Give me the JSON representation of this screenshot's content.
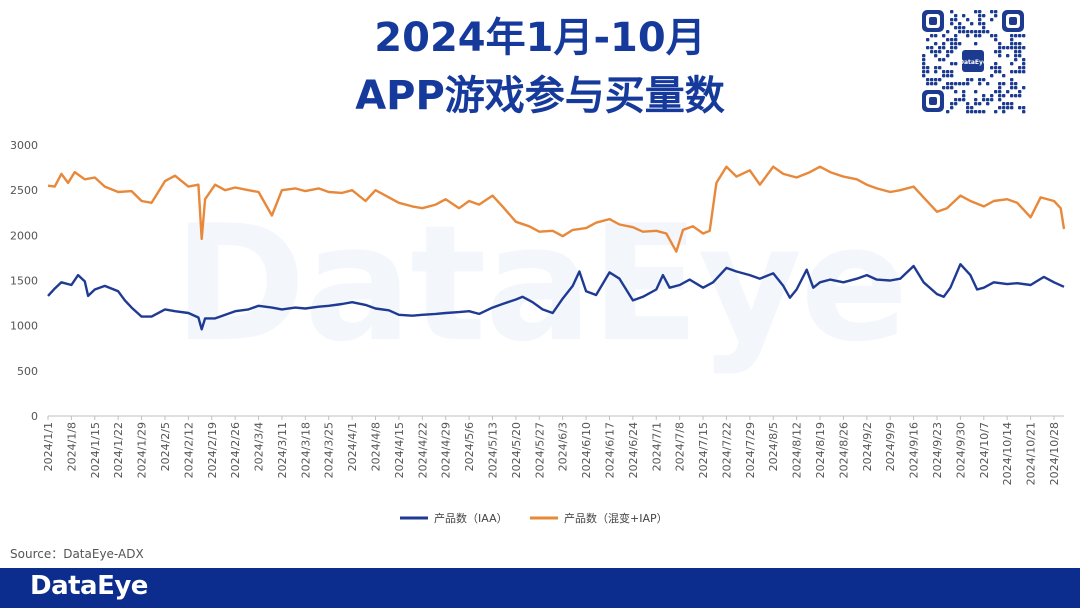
{
  "header": {
    "title_line1": "2024年1月-10月",
    "title_line2": "APP游戏参与买量数",
    "qr_center_text": "DataEye"
  },
  "watermark": "DataEye",
  "source": "Source：DataEye-ADX",
  "footer": {
    "logo": "DataEye"
  },
  "colors": {
    "iaa": "#1f3a93",
    "hybrid": "#e8883a",
    "title": "#163a9c",
    "footer": "#0d2d8e"
  },
  "chart_data": {
    "type": "line",
    "title": "",
    "xlabel": "",
    "ylabel": "",
    "ylim": [
      0,
      3000
    ],
    "yticks": [
      0,
      500,
      1000,
      1500,
      2000,
      2500,
      3000
    ],
    "grid": false,
    "legend_position": "bottom",
    "x_start": "2024/1/1",
    "x_end": "2024/10/31",
    "x_tick_labels": [
      "2024/1/1",
      "2024/1/8",
      "2024/1/15",
      "2024/1/22",
      "2024/1/29",
      "2024/2/5",
      "2024/2/12",
      "2024/2/19",
      "2024/2/26",
      "2024/3/4",
      "2024/3/11",
      "2024/3/18",
      "2024/3/25",
      "2024/4/1",
      "2024/4/8",
      "2024/4/15",
      "2024/4/22",
      "2024/4/29",
      "2024/5/6",
      "2024/5/13",
      "2024/5/20",
      "2024/5/27",
      "2024/6/3",
      "2024/6/10",
      "2024/6/17",
      "2024/6/24",
      "2024/7/1",
      "2024/7/8",
      "2024/7/15",
      "2024/7/22",
      "2024/7/29",
      "2024/8/5",
      "2024/8/12",
      "2024/8/19",
      "2024/8/26",
      "2024/9/2",
      "2024/9/9",
      "2024/9/16",
      "2024/9/23",
      "2024/9/30",
      "2024/10/7",
      "2024/10/14",
      "2024/10/21",
      "2024/10/28"
    ],
    "series": [
      {
        "name": "产品数（IAA）",
        "color": "#1f3a93",
        "points": [
          [
            "2024/1/1",
            1330
          ],
          [
            "2024/1/3",
            1410
          ],
          [
            "2024/1/5",
            1480
          ],
          [
            "2024/1/8",
            1450
          ],
          [
            "2024/1/10",
            1560
          ],
          [
            "2024/1/12",
            1490
          ],
          [
            "2024/1/13",
            1330
          ],
          [
            "2024/1/15",
            1400
          ],
          [
            "2024/1/18",
            1440
          ],
          [
            "2024/1/22",
            1380
          ],
          [
            "2024/1/24",
            1280
          ],
          [
            "2024/1/26",
            1200
          ],
          [
            "2024/1/29",
            1100
          ],
          [
            "2024/2/1",
            1100
          ],
          [
            "2024/2/5",
            1180
          ],
          [
            "2024/2/8",
            1160
          ],
          [
            "2024/2/12",
            1140
          ],
          [
            "2024/2/15",
            1090
          ],
          [
            "2024/2/16",
            960
          ],
          [
            "2024/2/17",
            1080
          ],
          [
            "2024/2/20",
            1080
          ],
          [
            "2024/2/26",
            1160
          ],
          [
            "2024/3/1",
            1180
          ],
          [
            "2024/3/4",
            1220
          ],
          [
            "2024/3/8",
            1200
          ],
          [
            "2024/3/11",
            1180
          ],
          [
            "2024/3/15",
            1200
          ],
          [
            "2024/3/18",
            1190
          ],
          [
            "2024/3/22",
            1210
          ],
          [
            "2024/3/25",
            1220
          ],
          [
            "2024/3/29",
            1240
          ],
          [
            "2024/4/1",
            1260
          ],
          [
            "2024/4/5",
            1230
          ],
          [
            "2024/4/8",
            1190
          ],
          [
            "2024/4/12",
            1170
          ],
          [
            "2024/4/15",
            1120
          ],
          [
            "2024/4/19",
            1110
          ],
          [
            "2024/4/22",
            1120
          ],
          [
            "2024/4/26",
            1130
          ],
          [
            "2024/4/29",
            1140
          ],
          [
            "2024/5/3",
            1150
          ],
          [
            "2024/5/6",
            1160
          ],
          [
            "2024/5/9",
            1130
          ],
          [
            "2024/5/13",
            1200
          ],
          [
            "2024/5/16",
            1240
          ],
          [
            "2024/5/20",
            1290
          ],
          [
            "2024/5/22",
            1320
          ],
          [
            "2024/5/25",
            1260
          ],
          [
            "2024/5/28",
            1180
          ],
          [
            "2024/5/31",
            1140
          ],
          [
            "2024/6/3",
            1300
          ],
          [
            "2024/6/6",
            1440
          ],
          [
            "2024/6/8",
            1600
          ],
          [
            "2024/6/10",
            1380
          ],
          [
            "2024/6/13",
            1340
          ],
          [
            "2024/6/17",
            1590
          ],
          [
            "2024/6/20",
            1520
          ],
          [
            "2024/6/24",
            1280
          ],
          [
            "2024/6/27",
            1320
          ],
          [
            "2024/7/1",
            1400
          ],
          [
            "2024/7/3",
            1560
          ],
          [
            "2024/7/5",
            1420
          ],
          [
            "2024/7/8",
            1450
          ],
          [
            "2024/7/11",
            1510
          ],
          [
            "2024/7/15",
            1420
          ],
          [
            "2024/7/18",
            1480
          ],
          [
            "2024/7/22",
            1640
          ],
          [
            "2024/7/25",
            1600
          ],
          [
            "2024/7/29",
            1560
          ],
          [
            "2024/8/1",
            1520
          ],
          [
            "2024/8/5",
            1580
          ],
          [
            "2024/8/8",
            1440
          ],
          [
            "2024/8/10",
            1310
          ],
          [
            "2024/8/12",
            1400
          ],
          [
            "2024/8/15",
            1620
          ],
          [
            "2024/8/17",
            1420
          ],
          [
            "2024/8/19",
            1480
          ],
          [
            "2024/8/22",
            1510
          ],
          [
            "2024/8/26",
            1480
          ],
          [
            "2024/8/30",
            1520
          ],
          [
            "2024/9/2",
            1560
          ],
          [
            "2024/9/5",
            1510
          ],
          [
            "2024/9/9",
            1500
          ],
          [
            "2024/9/12",
            1520
          ],
          [
            "2024/9/16",
            1660
          ],
          [
            "2024/9/19",
            1480
          ],
          [
            "2024/9/23",
            1350
          ],
          [
            "2024/9/25",
            1320
          ],
          [
            "2024/9/27",
            1420
          ],
          [
            "2024/9/30",
            1680
          ],
          [
            "2024/10/3",
            1560
          ],
          [
            "2024/10/5",
            1400
          ],
          [
            "2024/10/7",
            1420
          ],
          [
            "2024/10/10",
            1480
          ],
          [
            "2024/10/14",
            1460
          ],
          [
            "2024/10/17",
            1470
          ],
          [
            "2024/10/21",
            1450
          ],
          [
            "2024/10/25",
            1540
          ],
          [
            "2024/10/28",
            1480
          ],
          [
            "2024/10/31",
            1430
          ]
        ]
      },
      {
        "name": "产品数（混变+IAP）",
        "color": "#e8883a",
        "points": [
          [
            "2024/1/1",
            2550
          ],
          [
            "2024/1/3",
            2540
          ],
          [
            "2024/1/5",
            2680
          ],
          [
            "2024/1/7",
            2580
          ],
          [
            "2024/1/9",
            2700
          ],
          [
            "2024/1/12",
            2620
          ],
          [
            "2024/1/15",
            2640
          ],
          [
            "2024/1/18",
            2540
          ],
          [
            "2024/1/22",
            2480
          ],
          [
            "2024/1/26",
            2490
          ],
          [
            "2024/1/29",
            2380
          ],
          [
            "2024/2/1",
            2360
          ],
          [
            "2024/2/5",
            2600
          ],
          [
            "2024/2/8",
            2660
          ],
          [
            "2024/2/12",
            2540
          ],
          [
            "2024/2/15",
            2560
          ],
          [
            "2024/2/16",
            1960
          ],
          [
            "2024/2/17",
            2400
          ],
          [
            "2024/2/20",
            2560
          ],
          [
            "2024/2/23",
            2500
          ],
          [
            "2024/2/26",
            2530
          ],
          [
            "2024/3/1",
            2500
          ],
          [
            "2024/3/4",
            2480
          ],
          [
            "2024/3/8",
            2220
          ],
          [
            "2024/3/11",
            2500
          ],
          [
            "2024/3/15",
            2520
          ],
          [
            "2024/3/18",
            2490
          ],
          [
            "2024/3/22",
            2520
          ],
          [
            "2024/3/25",
            2480
          ],
          [
            "2024/3/29",
            2470
          ],
          [
            "2024/4/1",
            2500
          ],
          [
            "2024/4/5",
            2380
          ],
          [
            "2024/4/8",
            2500
          ],
          [
            "2024/4/12",
            2420
          ],
          [
            "2024/4/15",
            2360
          ],
          [
            "2024/4/19",
            2320
          ],
          [
            "2024/4/22",
            2300
          ],
          [
            "2024/4/26",
            2340
          ],
          [
            "2024/4/29",
            2400
          ],
          [
            "2024/5/3",
            2300
          ],
          [
            "2024/5/6",
            2380
          ],
          [
            "2024/5/9",
            2340
          ],
          [
            "2024/5/13",
            2440
          ],
          [
            "2024/5/16",
            2320
          ],
          [
            "2024/5/20",
            2150
          ],
          [
            "2024/5/24",
            2100
          ],
          [
            "2024/5/27",
            2040
          ],
          [
            "2024/5/31",
            2050
          ],
          [
            "2024/6/3",
            1990
          ],
          [
            "2024/6/6",
            2060
          ],
          [
            "2024/6/10",
            2080
          ],
          [
            "2024/6/13",
            2140
          ],
          [
            "2024/6/17",
            2180
          ],
          [
            "2024/6/20",
            2120
          ],
          [
            "2024/6/24",
            2090
          ],
          [
            "2024/6/27",
            2040
          ],
          [
            "2024/7/1",
            2050
          ],
          [
            "2024/7/4",
            2020
          ],
          [
            "2024/7/7",
            1820
          ],
          [
            "2024/7/9",
            2060
          ],
          [
            "2024/7/12",
            2100
          ],
          [
            "2024/7/15",
            2020
          ],
          [
            "2024/7/17",
            2050
          ],
          [
            "2024/7/19",
            2580
          ],
          [
            "2024/7/22",
            2760
          ],
          [
            "2024/7/25",
            2650
          ],
          [
            "2024/7/29",
            2720
          ],
          [
            "2024/8/1",
            2560
          ],
          [
            "2024/8/5",
            2760
          ],
          [
            "2024/8/8",
            2680
          ],
          [
            "2024/8/12",
            2640
          ],
          [
            "2024/8/16",
            2700
          ],
          [
            "2024/8/19",
            2760
          ],
          [
            "2024/8/22",
            2700
          ],
          [
            "2024/8/26",
            2650
          ],
          [
            "2024/8/30",
            2620
          ],
          [
            "2024/9/2",
            2560
          ],
          [
            "2024/9/5",
            2520
          ],
          [
            "2024/9/9",
            2480
          ],
          [
            "2024/9/12",
            2500
          ],
          [
            "2024/9/16",
            2540
          ],
          [
            "2024/9/19",
            2420
          ],
          [
            "2024/9/23",
            2260
          ],
          [
            "2024/9/26",
            2300
          ],
          [
            "2024/9/30",
            2440
          ],
          [
            "2024/10/3",
            2380
          ],
          [
            "2024/10/7",
            2320
          ],
          [
            "2024/10/10",
            2380
          ],
          [
            "2024/10/14",
            2400
          ],
          [
            "2024/10/17",
            2360
          ],
          [
            "2024/10/21",
            2200
          ],
          [
            "2024/10/24",
            2420
          ],
          [
            "2024/10/28",
            2380
          ],
          [
            "2024/10/30",
            2300
          ],
          [
            "2024/10/31",
            2070
          ]
        ]
      }
    ]
  }
}
